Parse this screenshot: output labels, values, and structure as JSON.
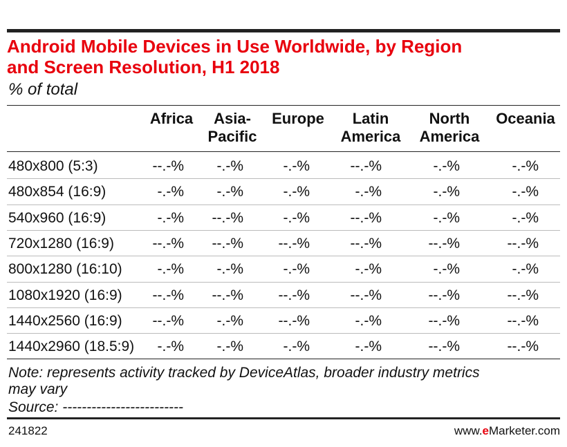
{
  "header": {
    "title": "Android Mobile Devices in Use Worldwide, by Region\nand Screen Resolution, H1 2018",
    "subtitle": "% of total"
  },
  "table": {
    "columns": [
      "Africa",
      "Asia-\nPacific",
      "Europe",
      "Latin\nAmerica",
      "North\nAmerica",
      "Oceania"
    ],
    "rows": [
      [
        "480x800 (5:3)",
        "--.-%",
        "-.-%",
        "-.-%",
        "--.-%",
        "-.-%",
        "-.-%"
      ],
      [
        "480x854 (16:9)",
        "-.-%",
        "-.-%",
        "-.-%",
        "-.-%",
        "-.-%",
        "-.-%"
      ],
      [
        "540x960 (16:9)",
        "-.-%",
        "--.-%",
        "-.-%",
        "--.-%",
        "-.-%",
        "-.-%"
      ],
      [
        "720x1280 (16:9)",
        "--.-%",
        "--.-%",
        "--.-%",
        "--.-%",
        "--.-%",
        "--.-%"
      ],
      [
        "800x1280 (16:10)",
        "-.-%",
        "-.-%",
        "-.-%",
        "-.-%",
        "-.-%",
        "-.-%"
      ],
      [
        "1080x1920 (16:9)",
        "--.-%",
        "--.-%",
        "--.-%",
        "--.-%",
        "--.-%",
        "--.-%"
      ],
      [
        "1440x2560 (16:9)",
        "--.-%",
        "-.-%",
        "--.-%",
        "-.-%",
        "--.-%",
        "--.-%"
      ],
      [
        "1440x2960 (18.5:9)",
        "-.-%",
        "-.-%",
        "-.-%",
        "-.-%",
        "--.-%",
        "--.-%"
      ]
    ]
  },
  "footer": {
    "note": "Note: represents activity tracked by DeviceAtlas, broader industry metrics\nmay vary",
    "source": "Source: -------------------------",
    "id": "241822",
    "brand": {
      "prefix": "www.",
      "mark": "e",
      "suffix": "Marketer.com"
    }
  }
}
